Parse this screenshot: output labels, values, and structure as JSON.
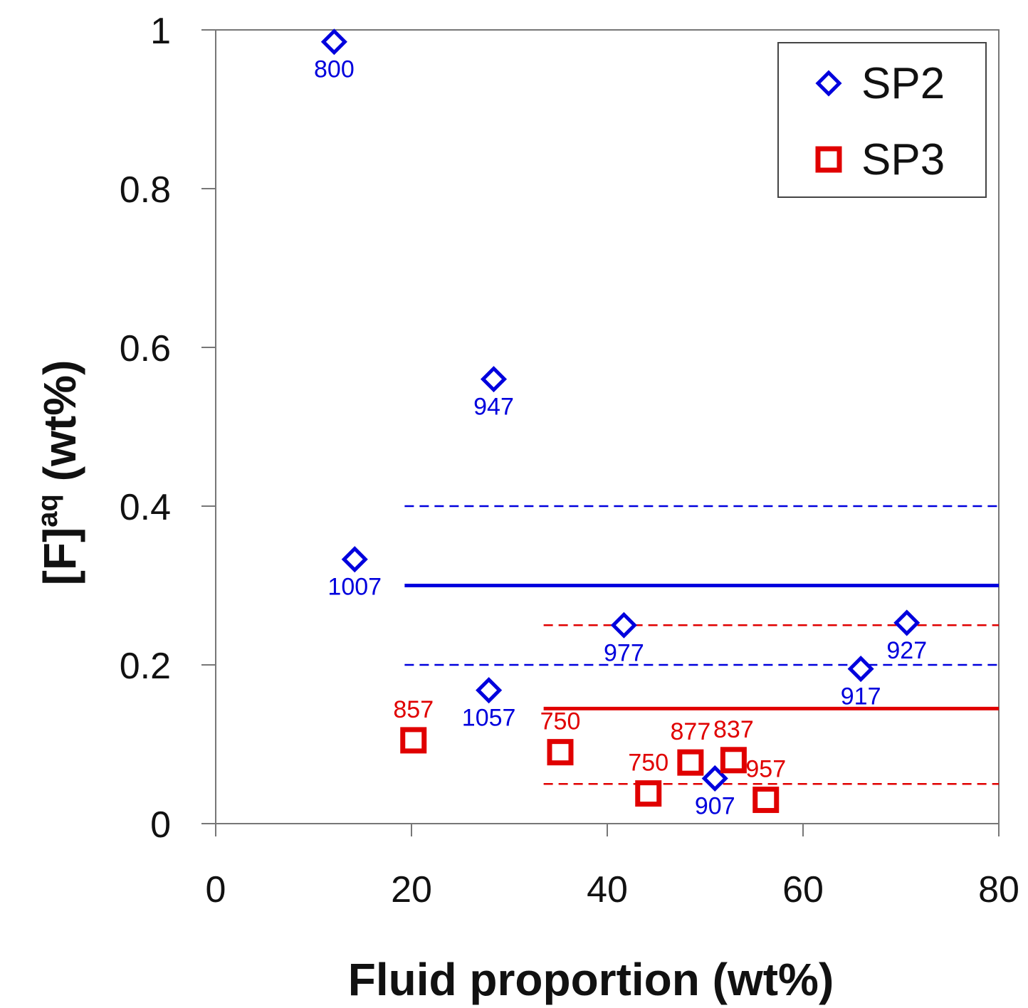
{
  "chart_data": {
    "type": "scatter",
    "xlabel": "Fluid proportion (wt%)",
    "ylabel_main": "[F]",
    "ylabel_sup": "aq",
    "ylabel_unit": " (wt%)",
    "xlim": [
      0,
      80
    ],
    "ylim": [
      0,
      1
    ],
    "xticks": [
      "0",
      "20",
      "40",
      "60",
      "80"
    ],
    "yticks": [
      "0",
      "0.2",
      "0.4",
      "0.6",
      "0.8",
      "1"
    ],
    "grid": false,
    "legend_position": "top-right",
    "colors": {
      "SP2": "#0000dd",
      "SP3": "#e00000"
    },
    "series": [
      {
        "name": "SP2",
        "marker": "diamond",
        "points": [
          {
            "x": 12.1,
            "y": 0.985,
            "label": "800"
          },
          {
            "x": 28.4,
            "y": 0.56,
            "label": "947"
          },
          {
            "x": 14.2,
            "y": 0.333,
            "label": "1007"
          },
          {
            "x": 41.7,
            "y": 0.25,
            "label": "977"
          },
          {
            "x": 27.9,
            "y": 0.168,
            "label": "1057"
          },
          {
            "x": 51.0,
            "y": 0.057,
            "label": "907"
          },
          {
            "x": 65.9,
            "y": 0.195,
            "label": "917"
          },
          {
            "x": 70.6,
            "y": 0.253,
            "label": "927"
          }
        ]
      },
      {
        "name": "SP3",
        "marker": "square",
        "points": [
          {
            "x": 20.2,
            "y": 0.105,
            "label": "857"
          },
          {
            "x": 35.2,
            "y": 0.09,
            "label": "750"
          },
          {
            "x": 44.2,
            "y": 0.038,
            "label": "750"
          },
          {
            "x": 48.5,
            "y": 0.077,
            "label": "877"
          },
          {
            "x": 52.9,
            "y": 0.08,
            "label": "837"
          },
          {
            "x": 56.2,
            "y": 0.03,
            "label": "957"
          }
        ]
      }
    ],
    "reference_lines": [
      {
        "series": "SP2",
        "style": "solid",
        "y": 0.3,
        "x_start": 19.3,
        "x_end": 80
      },
      {
        "series": "SP2",
        "style": "dashed",
        "y": 0.4,
        "x_start": 19.3,
        "x_end": 80
      },
      {
        "series": "SP2",
        "style": "dashed",
        "y": 0.2,
        "x_start": 19.3,
        "x_end": 80
      },
      {
        "series": "SP3",
        "style": "solid",
        "y": 0.145,
        "x_start": 33.5,
        "x_end": 80
      },
      {
        "series": "SP3",
        "style": "dashed",
        "y": 0.25,
        "x_start": 33.5,
        "x_end": 80
      },
      {
        "series": "SP3",
        "style": "dashed",
        "y": 0.05,
        "x_start": 33.5,
        "x_end": 80
      }
    ]
  }
}
